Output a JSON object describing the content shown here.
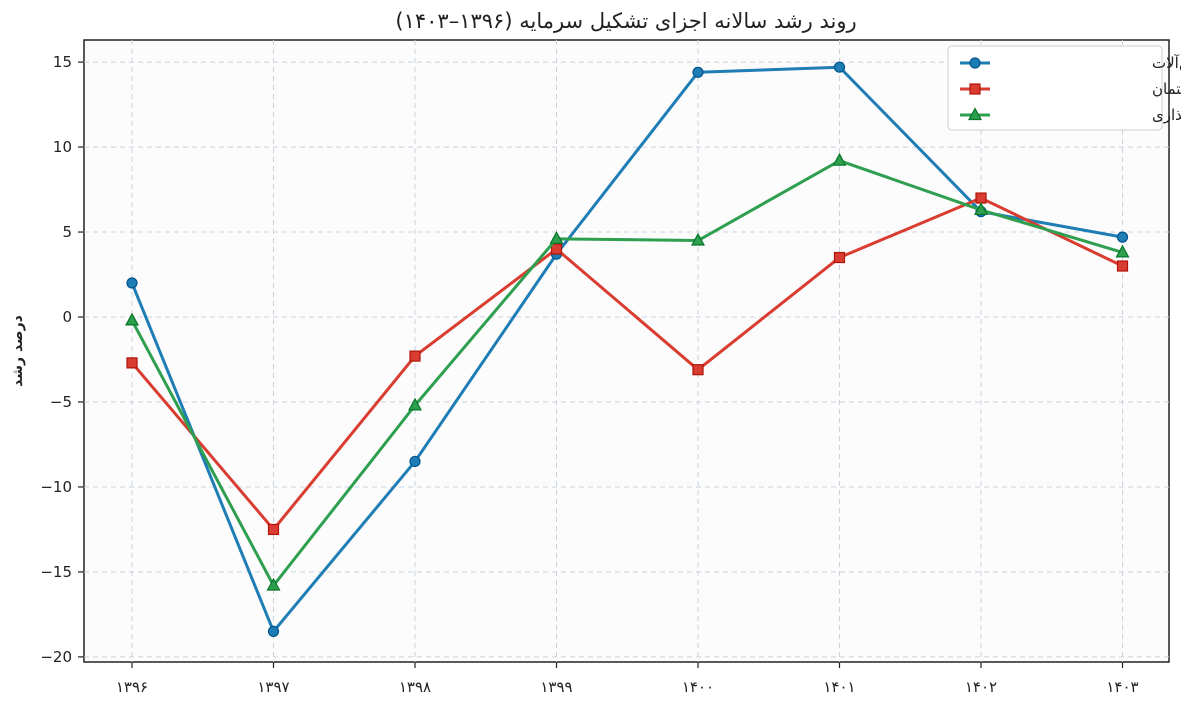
{
  "chart_data": {
    "type": "line",
    "title": "روند رشد سالانه اجزای تشکیل سرمایه (۱۳۹۶–۱۴۰۳)",
    "xlabel": "",
    "ylabel": "درصد رشد",
    "categories": [
      "۱۳۹۶",
      "۱۳۹۷",
      "۱۳۹۸",
      "۱۳۹۹",
      "۱۴۰۰",
      "۱۴۰۱",
      "۱۴۰۲",
      "۱۴۰۳"
    ],
    "ylim": [
      -20.3,
      16.3
    ],
    "yticks": [
      15,
      10,
      5,
      0,
      -5,
      -10,
      -15,
      -20
    ],
    "ytick_labels": [
      "15",
      "10",
      "5",
      "0",
      "−5",
      "−10",
      "−15",
      "−20"
    ],
    "grid": true,
    "legend_position": "top-right",
    "series": [
      {
        "name": "رشد ماشین‌آلات",
        "color": "#1f7db5",
        "marker": "circle",
        "values": [
          2.0,
          -18.5,
          -8.5,
          3.7,
          14.4,
          14.7,
          6.2,
          4.7
        ]
      },
      {
        "name": "رشد ساختمان",
        "color": "#d93c30",
        "marker": "square",
        "values": [
          -2.7,
          -12.5,
          -2.3,
          4.0,
          -3.1,
          3.5,
          7.0,
          3.0
        ]
      },
      {
        "name": "رشد کل سرمایه‌گذاری",
        "color": "#2e9e4f",
        "marker": "triangle",
        "values": [
          -0.2,
          -15.8,
          -5.2,
          4.6,
          4.5,
          9.2,
          6.3,
          3.8
        ]
      }
    ]
  }
}
